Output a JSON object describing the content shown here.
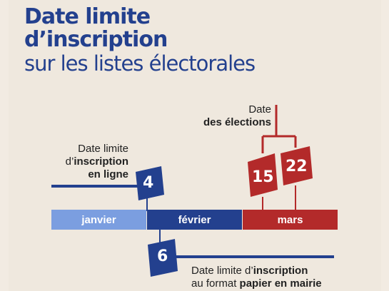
{
  "title": {
    "line1": "Date limite",
    "line2": "d’inscription",
    "subtitle": "sur les listes électorales"
  },
  "months": [
    {
      "label": "janvier",
      "color": "#7b9ee0"
    },
    {
      "label": "février",
      "color": "#23408e"
    },
    {
      "label": "mars",
      "color": "#b32a2a"
    }
  ],
  "deadlines": {
    "online": {
      "day": "4",
      "line1": "Date limite",
      "line2_prefix": "d’",
      "line2_bold": "inscription",
      "line3_bold": "en ligne"
    },
    "paper": {
      "day": "6",
      "line1_prefix": "Date limite d’",
      "line1_bold": "inscription",
      "line2_prefix": "au format ",
      "line2_bold": "papier en mairie"
    }
  },
  "elections": {
    "label_line1": "Date",
    "label_line2": "des élections",
    "round1_day": "15",
    "round2_day": "22"
  },
  "colors": {
    "blue": "#23408e",
    "light_blue": "#7b9ee0",
    "red": "#b32a2a"
  }
}
